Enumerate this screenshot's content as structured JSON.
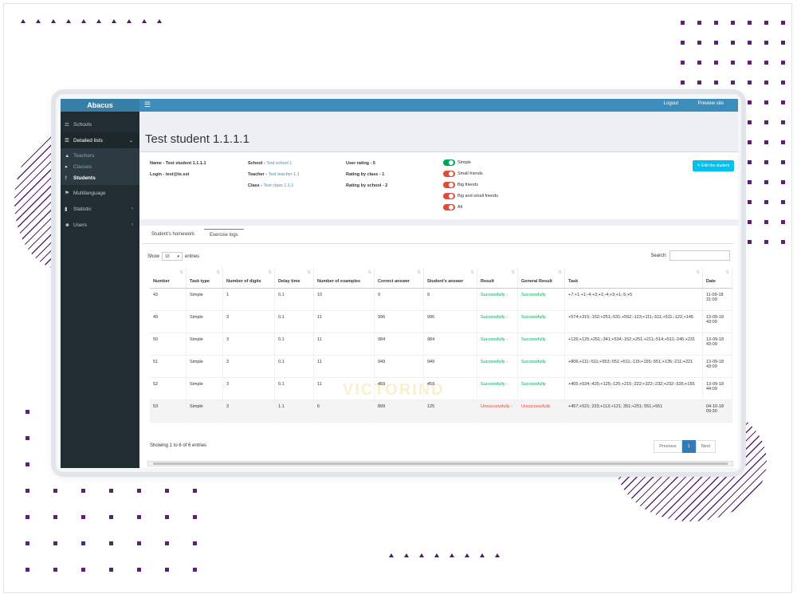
{
  "brand": "Abacus",
  "topbar": {
    "logout": "Logout",
    "preview": "Preview site"
  },
  "sidebar": {
    "schools": "Schools",
    "detailed_lists": "Detailed lists",
    "teachers": "Teachers",
    "classes": "Classes",
    "students": "Students",
    "multilanguage": "Multilanguage",
    "statistic": "Statistic",
    "users": "Users"
  },
  "page_title": "Test student 1.1.1.1",
  "info": {
    "name_label": "Name - Test student 1.1.1.1",
    "login_label": "Login - test@te.sst",
    "school_label": "School - ",
    "school_value": "Test school 1",
    "teacher_label": "Teacher - ",
    "teacher_value": "Test teacher 1.1",
    "class_label": "Class - ",
    "class_value": "Test class 1.1.1",
    "user_rating": "User rating - 5",
    "rating_class": "Rating by class - 1",
    "rating_school": "Rating by school - 2"
  },
  "toggles": [
    {
      "label": "Simple",
      "on": true
    },
    {
      "label": "Small friends",
      "on": false
    },
    {
      "label": "Big friends",
      "on": false
    },
    {
      "label": "Big and small friends",
      "on": false
    },
    {
      "label": "All",
      "on": false
    }
  ],
  "edit_button": "Edit the student",
  "tabs": {
    "homework": "Student's homework",
    "logs": "Exercise logs"
  },
  "length": {
    "show": "Show",
    "value": "10",
    "entries": "entries"
  },
  "search_label": "Search:",
  "columns": [
    "Number",
    "Task type",
    "Number of digits",
    "Delay time",
    "Number of examples",
    "Correct answer",
    "Student's answer",
    "Result",
    "General Result",
    "Task",
    "Date"
  ],
  "rows": [
    [
      "43",
      "Simple",
      "1",
      "0.1",
      "10",
      "9",
      "9",
      "Successfully -",
      "Successfully",
      "+7;+1;+1;-4;+3;+1;-4;+3;+1;-5;+5",
      "11-09-18 31:09"
    ],
    [
      "49",
      "Simple",
      "3",
      "0.1",
      "11",
      "996",
      "996",
      "Successfully -",
      "Successfully",
      "+574;+315;-152;+251;-531;+552;-123;+111;-511;+511;-122;+145",
      "13-09-18 43:09"
    ],
    [
      "50",
      "Simple",
      "3",
      "0.1",
      "11",
      "984",
      "984",
      "Successfully -",
      "Successfully",
      "+126;+125;+251;-341;+534;-152;+251;+211;-514;+511;-245;+231",
      "13-09-18 43:09"
    ],
    [
      "51",
      "Simple",
      "3",
      "0.1",
      "11",
      "949",
      "949",
      "Successfully -",
      "Successfully",
      "+806;+111;-511;+553;-551;+511;-115;+155;-551;+135;-211;+221",
      "13-09-18 43:09"
    ],
    [
      "52",
      "Simple",
      "3",
      "0.1",
      "11",
      "459",
      "459",
      "Successfully -",
      "Successfully",
      "+405;+534;-425;+125;-125;+215;-222;+322;-232;+232;-535;+155",
      "13-09-18 44:09"
    ],
    [
      "53",
      "Simple",
      "3",
      "1.1",
      "6",
      "899",
      "125",
      "Unsuccessfully -",
      "Unsuccessfully",
      "+457;+521; 233;+113;+121; 351;+251; 551;+551",
      "04-10-18 09:30"
    ]
  ],
  "footer": "Showing 1 to 6 of 6 entries",
  "pager": {
    "prev": "Previous",
    "page": "1",
    "next": "Next"
  },
  "watermark": "VICTORIND",
  "colors": {
    "topbar": "#3c8dbc",
    "sidebar": "#222d32",
    "success": "#00a65a",
    "danger": "#dd4b39",
    "accent_deco": "#5a2470"
  }
}
